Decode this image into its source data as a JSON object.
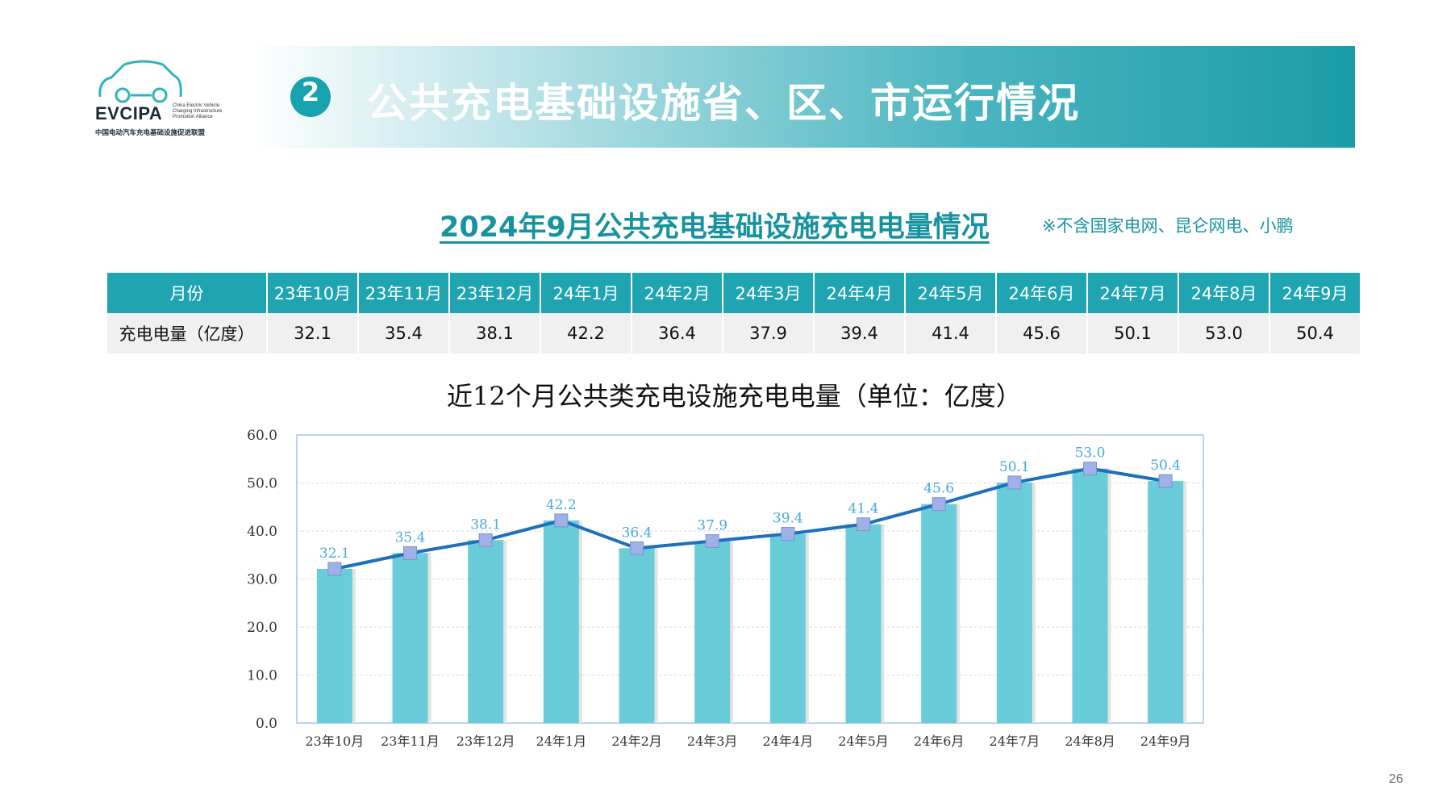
{
  "logo": {
    "name": "EVCIPA",
    "en_small": [
      "China Electric Vehicle",
      "Charging Infrastructure",
      "Promotion Alliance"
    ],
    "cn_name": "中国电动汽车充电基础设施促进联盟"
  },
  "header": {
    "section_number": "2",
    "title": "公共充电基础设施省、区、市运行情况"
  },
  "subtitle": "2024年9月公共充电基础设施充电电量情况",
  "note": "※不含国家电网、昆仑网电、小鹏",
  "table": {
    "row_label_header": "月份",
    "row_label_values": "充电电量（亿度）",
    "months": [
      "23年10月",
      "23年11月",
      "23年12月",
      "24年1月",
      "24年2月",
      "24年3月",
      "24年4月",
      "24年5月",
      "24年6月",
      "24年7月",
      "24年8月",
      "24年9月"
    ],
    "values": [
      "32.1",
      "35.4",
      "38.1",
      "42.2",
      "36.4",
      "37.9",
      "39.4",
      "41.4",
      "45.6",
      "50.1",
      "53.0",
      "50.4"
    ]
  },
  "chart_data": {
    "type": "bar",
    "title": "近12个月公共类充电设施充电电量（单位：亿度）",
    "categories": [
      "23年10月",
      "23年11月",
      "23年12月",
      "24年1月",
      "24年2月",
      "24年3月",
      "24年4月",
      "24年5月",
      "24年6月",
      "24年7月",
      "24年8月",
      "24年9月"
    ],
    "values": [
      32.1,
      35.4,
      38.1,
      42.2,
      36.4,
      37.9,
      39.4,
      41.4,
      45.6,
      50.1,
      53.0,
      50.4
    ],
    "data_labels": [
      "32.1",
      "35.4",
      "38.1",
      "42.2",
      "36.4",
      "37.9",
      "39.4",
      "41.4",
      "45.6",
      "50.1",
      "53.0",
      "50.4"
    ],
    "overlay_line": true,
    "ylim": [
      0,
      60
    ],
    "yticks": [
      "0.0",
      "10.0",
      "20.0",
      "30.0",
      "40.0",
      "50.0",
      "60.0"
    ],
    "grid": true,
    "colors": {
      "bar": "#68cdd9",
      "line": "#1f6fbf",
      "marker": "#9fb1e6",
      "label": "#4aa8d8"
    }
  },
  "page_number": "26"
}
